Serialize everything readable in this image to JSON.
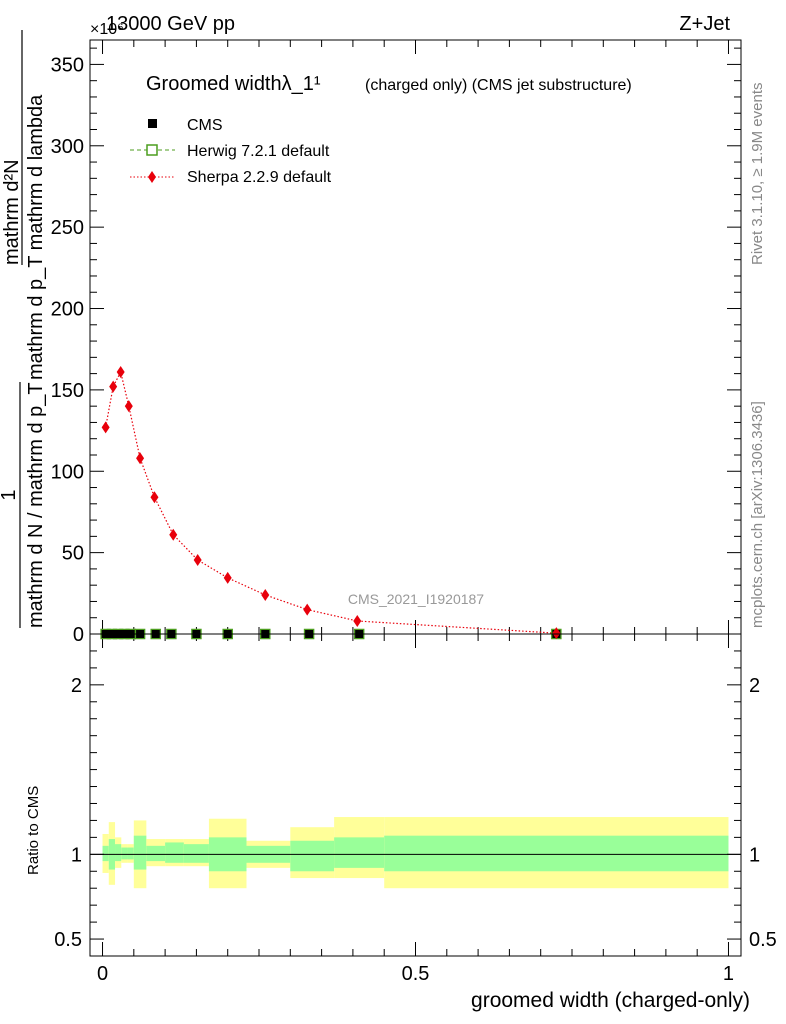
{
  "header": {
    "left": "13000 GeV pp",
    "right": "Z+Jet",
    "multiplier": "×10⁶"
  },
  "side_labels": {
    "rivet": "Rivet 3.1.10, ≥ 1.9M events",
    "mcplots": "mcplots.cern.ch [arXiv:1306.3436]"
  },
  "colors": {
    "cms": "#000000",
    "herwig": "#4c9e1f",
    "sherpa": "#e8000b",
    "band_inner": "#99ff99",
    "band_outer": "#ffff99"
  },
  "chart_data": [
    {
      "type": "line",
      "title": "Groomed widthλ_1¹",
      "subtitle": "(charged only) (CMS jet substructure)",
      "watermark": "CMS_2021_I1920187",
      "ylabel_parts": {
        "one": "1",
        "denominator": "mathrm d N / mathrm d p_T",
        "numerator": "mathrm d²N",
        "numerator_denominator": "mathrm d p_T mathrm d lambda"
      },
      "ylim": [
        0,
        365
      ],
      "yticks": [
        0,
        50,
        100,
        150,
        200,
        250,
        300,
        350
      ],
      "xlim": [
        -0.02,
        1.02
      ],
      "legend": [
        {
          "key": "cms",
          "label": "CMS",
          "marker": "square"
        },
        {
          "key": "herwig",
          "label": "Herwig 7.2.1 default",
          "marker": "open-square",
          "line": "dashed"
        },
        {
          "key": "sherpa",
          "label": "Sherpa 2.2.9 default",
          "marker": "diamond",
          "line": "dotted"
        }
      ],
      "series": [
        {
          "name": "CMS",
          "key": "cms",
          "x": [
            0.005,
            0.015,
            0.025,
            0.035,
            0.045,
            0.06,
            0.085,
            0.11,
            0.15,
            0.2,
            0.26,
            0.33,
            0.41,
            0.725
          ],
          "y": [
            0,
            0,
            0,
            0,
            0,
            0,
            0,
            0,
            0,
            0,
            0,
            0,
            0,
            0
          ]
        },
        {
          "name": "Herwig 7.2.1 default",
          "key": "herwig",
          "x": [
            0.005,
            0.015,
            0.025,
            0.035,
            0.045,
            0.06,
            0.085,
            0.11,
            0.15,
            0.2,
            0.26,
            0.33,
            0.41,
            0.725
          ],
          "y": [
            0,
            0,
            0,
            0,
            0,
            0,
            0,
            0,
            0,
            0,
            0,
            0,
            0,
            0
          ]
        },
        {
          "name": "Sherpa 2.2.9 default",
          "key": "sherpa",
          "x": [
            0.005,
            0.017,
            0.029,
            0.042,
            0.06,
            0.083,
            0.113,
            0.152,
            0.2,
            0.26,
            0.327,
            0.407,
            0.725
          ],
          "y": [
            127,
            152,
            161,
            140,
            108,
            84,
            61,
            45.5,
            34.5,
            24,
            15,
            8,
            0.5
          ]
        }
      ]
    },
    {
      "type": "area",
      "ylabel": "Ratio to CMS",
      "ylim": [
        0.4,
        2.3
      ],
      "yticks": [
        0.5,
        1,
        2
      ],
      "ytick_labels": [
        "0.5",
        "1",
        "2"
      ],
      "xlabel": "groomed width (charged-only)",
      "xlim": [
        -0.02,
        1.02
      ],
      "xticks": [
        0,
        0.5,
        1
      ],
      "xtick_labels": [
        "0",
        "0.5",
        "1"
      ],
      "reference": 1,
      "bands": {
        "edges": [
          0,
          0.01,
          0.02,
          0.03,
          0.04,
          0.05,
          0.07,
          0.1,
          0.13,
          0.17,
          0.23,
          0.3,
          0.37,
          0.45,
          1.0
        ],
        "inner_low": [
          0.96,
          0.91,
          0.96,
          0.97,
          0.97,
          0.91,
          0.96,
          0.95,
          0.95,
          0.9,
          0.95,
          0.9,
          0.92,
          0.9
        ],
        "inner_high": [
          1.05,
          1.09,
          1.06,
          1.04,
          1.04,
          1.11,
          1.05,
          1.07,
          1.06,
          1.1,
          1.05,
          1.08,
          1.1,
          1.11
        ],
        "outer_low": [
          0.89,
          0.82,
          0.92,
          0.95,
          0.95,
          0.8,
          0.93,
          0.93,
          0.93,
          0.8,
          0.92,
          0.86,
          0.86,
          0.8
        ],
        "outer_high": [
          1.12,
          1.19,
          1.1,
          1.06,
          1.06,
          1.2,
          1.09,
          1.09,
          1.09,
          1.21,
          1.08,
          1.16,
          1.22,
          1.22
        ]
      }
    }
  ]
}
